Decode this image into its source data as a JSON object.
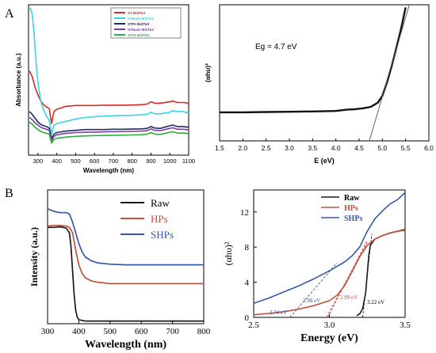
{
  "panel_labels": [
    "A",
    "B"
  ],
  "chart_data": [
    {
      "id": "A1",
      "type": "line",
      "xlabel": "Wavelength (nm)",
      "ylabel": "Absorbance (a.u.)",
      "xlim": [
        250,
        1100
      ],
      "ylim": [
        0,
        1
      ],
      "yticks_shown": false,
      "xticks": [
        300,
        400,
        500,
        600,
        700,
        800,
        900,
        1000,
        1100
      ],
      "legend_position": "top-right",
      "series": [
        {
          "name": "ST-Bi2Te3",
          "color": "#d42a2a",
          "x": [
            255,
            270,
            285,
            300,
            315,
            330,
            345,
            360,
            372,
            385,
            400,
            450,
            500,
            550,
            600,
            650,
            700,
            750,
            800,
            850,
            880,
            900,
            920,
            950,
            1000,
            1015,
            1040,
            1070,
            1100
          ],
          "y": [
            0.56,
            0.52,
            0.45,
            0.4,
            0.36,
            0.335,
            0.32,
            0.31,
            0.21,
            0.29,
            0.305,
            0.325,
            0.33,
            0.33,
            0.33,
            0.332,
            0.332,
            0.332,
            0.333,
            0.335,
            0.34,
            0.355,
            0.345,
            0.345,
            0.355,
            0.36,
            0.35,
            0.35,
            0.345
          ]
        },
        {
          "name": "STNaPr-Bi2Te3",
          "color": "#39d4e6",
          "x": [
            255,
            262,
            270,
            280,
            290,
            300,
            315,
            330,
            345,
            360,
            372,
            385,
            400,
            450,
            500,
            550,
            600,
            650,
            700,
            750,
            800,
            850,
            880,
            900,
            920,
            950,
            1000,
            1015,
            1040,
            1070,
            1100
          ],
          "y": [
            0.98,
            0.97,
            0.93,
            0.8,
            0.62,
            0.48,
            0.36,
            0.3,
            0.26,
            0.23,
            0.14,
            0.2,
            0.21,
            0.225,
            0.24,
            0.25,
            0.255,
            0.26,
            0.262,
            0.264,
            0.265,
            0.268,
            0.272,
            0.285,
            0.275,
            0.275,
            0.285,
            0.295,
            0.29,
            0.29,
            0.28
          ]
        },
        {
          "name": "STPr-Bi2Te3",
          "color": "#22286e",
          "x": [
            255,
            270,
            285,
            300,
            315,
            330,
            345,
            360,
            372,
            385,
            400,
            450,
            500,
            550,
            600,
            650,
            700,
            750,
            800,
            850,
            880,
            900,
            920,
            950,
            1000,
            1015,
            1040,
            1070,
            1100
          ],
          "y": [
            0.29,
            0.27,
            0.245,
            0.22,
            0.205,
            0.195,
            0.19,
            0.18,
            0.11,
            0.14,
            0.15,
            0.16,
            0.165,
            0.17,
            0.17,
            0.17,
            0.172,
            0.172,
            0.173,
            0.175,
            0.178,
            0.19,
            0.18,
            0.178,
            0.195,
            0.2,
            0.19,
            0.19,
            0.185
          ]
        },
        {
          "name": "STNaSr-Bi2Te3",
          "color": "#7a3fa0",
          "x": [
            255,
            270,
            285,
            300,
            315,
            330,
            345,
            360,
            372,
            385,
            400,
            450,
            500,
            550,
            600,
            650,
            700,
            750,
            800,
            850,
            880,
            900,
            920,
            950,
            1000,
            1015,
            1040,
            1070,
            1100
          ],
          "y": [
            0.25,
            0.235,
            0.215,
            0.2,
            0.185,
            0.178,
            0.172,
            0.165,
            0.095,
            0.125,
            0.135,
            0.145,
            0.15,
            0.152,
            0.153,
            0.155,
            0.156,
            0.157,
            0.158,
            0.16,
            0.163,
            0.175,
            0.165,
            0.163,
            0.178,
            0.182,
            0.172,
            0.172,
            0.168
          ]
        },
        {
          "name": "STSr-Bi2Te3",
          "color": "#2fae3a",
          "x": [
            255,
            270,
            285,
            300,
            315,
            330,
            345,
            360,
            372,
            385,
            400,
            450,
            500,
            550,
            600,
            650,
            700,
            750,
            800,
            850,
            880,
            900,
            920,
            950,
            1000,
            1015,
            1040,
            1070,
            1100
          ],
          "y": [
            0.22,
            0.205,
            0.185,
            0.17,
            0.158,
            0.15,
            0.145,
            0.14,
            0.08,
            0.105,
            0.112,
            0.12,
            0.125,
            0.128,
            0.13,
            0.131,
            0.132,
            0.133,
            0.134,
            0.136,
            0.139,
            0.15,
            0.14,
            0.138,
            0.152,
            0.156,
            0.147,
            0.147,
            0.143
          ]
        }
      ]
    },
    {
      "id": "A2",
      "type": "line",
      "xlabel": "E (eV)",
      "ylabel": "(αhυ)²",
      "xlim": [
        1.5,
        6.0
      ],
      "ylim": [
        0,
        1
      ],
      "yticks_shown": false,
      "xticks": [
        "1.5",
        "2.0",
        "2.5",
        "3.0",
        "3.5",
        "4.0",
        "4.5",
        "5.0",
        "5.5",
        "6.0"
      ],
      "annotation": "Eg = 4.7  eV",
      "series": [
        {
          "color": "#111111",
          "x": [
            1.5,
            2.0,
            2.5,
            3.0,
            3.5,
            4.0,
            4.25,
            4.4,
            4.6,
            4.75,
            4.9,
            5.0,
            5.1,
            5.2,
            5.3,
            5.4,
            5.5
          ],
          "y": [
            0.21,
            0.21,
            0.212,
            0.214,
            0.216,
            0.22,
            0.23,
            0.232,
            0.24,
            0.25,
            0.28,
            0.33,
            0.43,
            0.55,
            0.68,
            0.82,
            0.98
          ]
        },
        {
          "color": "#555555",
          "style": "fit",
          "x": [
            4.72,
            5.58
          ],
          "y": [
            0.0,
            1.0
          ]
        }
      ]
    },
    {
      "id": "B1",
      "type": "line",
      "xlabel": "Wavelength (nm)",
      "ylabel": "Intensity (a.u.)",
      "xlim": [
        300,
        800
      ],
      "ylim": [
        0,
        1
      ],
      "yticks_shown": false,
      "xticks": [
        300,
        400,
        500,
        600,
        700,
        800
      ],
      "legend_position": "top-right",
      "series": [
        {
          "name": "Raw",
          "color": "#1a1a1a",
          "x": [
            300,
            320,
            340,
            360,
            370,
            375,
            380,
            385,
            390,
            395,
            400,
            410,
            420,
            450,
            500,
            600,
            700,
            800
          ],
          "y": [
            0.72,
            0.72,
            0.725,
            0.715,
            0.68,
            0.58,
            0.4,
            0.22,
            0.1,
            0.05,
            0.03,
            0.025,
            0.02,
            0.02,
            0.02,
            0.02,
            0.02,
            0.02
          ]
        },
        {
          "name": "HPs",
          "color": "#c05040",
          "x": [
            300,
            320,
            340,
            360,
            370,
            380,
            390,
            400,
            410,
            420,
            440,
            460,
            500,
            550,
            600,
            700,
            800
          ],
          "y": [
            0.73,
            0.735,
            0.735,
            0.73,
            0.72,
            0.68,
            0.55,
            0.44,
            0.38,
            0.345,
            0.32,
            0.31,
            0.3,
            0.3,
            0.3,
            0.3,
            0.3
          ]
        },
        {
          "name": "SHPs",
          "color": "#3a58a8",
          "x": [
            300,
            310,
            320,
            340,
            360,
            370,
            380,
            390,
            400,
            410,
            420,
            440,
            460,
            500,
            550,
            600,
            700,
            800
          ],
          "y": [
            0.86,
            0.85,
            0.84,
            0.83,
            0.83,
            0.82,
            0.76,
            0.68,
            0.6,
            0.54,
            0.5,
            0.47,
            0.455,
            0.445,
            0.44,
            0.44,
            0.44,
            0.44
          ]
        }
      ]
    },
    {
      "id": "B2",
      "type": "line",
      "xlabel": "Energy (eV)",
      "ylabel": "(αhυ)²",
      "xlim": [
        2.5,
        3.5
      ],
      "ylim": [
        0,
        14.5
      ],
      "xticks": [
        "2.5",
        "3.0",
        "3.5"
      ],
      "yticks": [
        0,
        4,
        8,
        12
      ],
      "legend_position": "top-left",
      "annotations": [
        "2.74 eV",
        "2.98 eV",
        "2.99 eV",
        "3.22 eV"
      ],
      "series": [
        {
          "name": "Raw",
          "color": "#1a1a1a",
          "x": [
            3.18,
            3.2,
            3.22,
            3.24,
            3.25,
            3.26,
            3.27,
            3.3,
            3.35,
            3.4,
            3.45,
            3.5
          ],
          "y": [
            0.2,
            0.4,
            1.0,
            2.8,
            5.0,
            7.0,
            8.2,
            8.9,
            9.3,
            9.6,
            9.8,
            10.0
          ]
        },
        {
          "name": "HPs",
          "color": "#c05040",
          "x": [
            2.5,
            2.6,
            2.7,
            2.8,
            2.9,
            3.0,
            3.05,
            3.1,
            3.15,
            3.2,
            3.25,
            3.3,
            3.35,
            3.4,
            3.45,
            3.5
          ],
          "y": [
            0.3,
            0.45,
            0.65,
            0.95,
            1.35,
            1.9,
            2.5,
            3.6,
            5.2,
            6.9,
            8.2,
            8.9,
            9.3,
            9.6,
            9.8,
            9.9
          ]
        },
        {
          "name": "SHPs",
          "color": "#3a58a8",
          "x": [
            2.5,
            2.6,
            2.7,
            2.8,
            2.9,
            3.0,
            3.05,
            3.1,
            3.15,
            3.2,
            3.25,
            3.3,
            3.35,
            3.4,
            3.45,
            3.5
          ],
          "y": [
            1.6,
            2.2,
            2.9,
            3.6,
            4.4,
            5.3,
            5.8,
            6.3,
            7.0,
            8.0,
            9.8,
            11.2,
            12.1,
            12.9,
            13.4,
            14.2
          ]
        }
      ],
      "fits": [
        {
          "color": "#3a58a8",
          "x": [
            2.74,
            3.05
          ],
          "y": [
            0,
            6.2
          ]
        },
        {
          "color": "#c05040",
          "x": [
            2.98,
            3.25
          ],
          "y": [
            0,
            8.5
          ]
        },
        {
          "color": "#c05040",
          "x": [
            2.99,
            3.25
          ],
          "y": [
            0,
            8.8
          ]
        },
        {
          "color": "#1a1a1a",
          "x": [
            3.22,
            3.28
          ],
          "y": [
            0,
            9.5
          ]
        }
      ]
    }
  ]
}
